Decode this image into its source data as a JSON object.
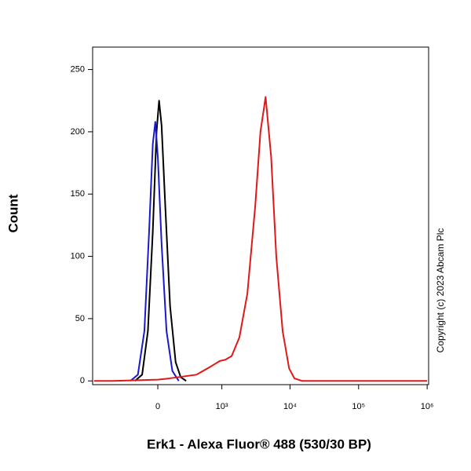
{
  "chart_data": {
    "type": "line",
    "xlabel": "Erk1 - Alexa Fluor® 488 (530/30 BP)",
    "ylabel": "Count",
    "annotation": "Copyright (c) 2023 Abcam Plc",
    "xscale": "biexponential",
    "xlim": [
      -1040,
      1050000
    ],
    "xticks": [
      0,
      {
        "value": 1000,
        "label": "10³"
      },
      {
        "value": 10000,
        "label": "10⁴"
      },
      {
        "value": 100000,
        "label": "10⁵"
      },
      {
        "value": 1000000,
        "label": "10⁶"
      }
    ],
    "ylim": [
      -3,
      268
    ],
    "yticks": [
      0,
      50,
      100,
      150,
      200,
      250
    ],
    "series": [
      {
        "color": "#000000",
        "x": [
          -200,
          -130,
          -80,
          -40,
          -10,
          10,
          30,
          60,
          100,
          150,
          200,
          260
        ],
        "values": [
          0,
          5,
          40,
          120,
          200,
          225,
          205,
          140,
          60,
          15,
          3,
          0
        ]
      },
      {
        "color": "#1a1acc",
        "x": [
          -250,
          -170,
          -110,
          -70,
          -40,
          -20,
          0,
          30,
          70,
          120,
          180
        ],
        "values": [
          0,
          5,
          40,
          120,
          190,
          208,
          180,
          110,
          40,
          8,
          0
        ]
      },
      {
        "color": "#e01818",
        "x": [
          -990,
          -500,
          0,
          90,
          400,
          700,
          930,
          1130,
          1400,
          1820,
          2380,
          3100,
          3700,
          4400,
          5300,
          6300,
          7800,
          9700,
          11600,
          15000,
          1000000
        ],
        "values": [
          0,
          0,
          1,
          2,
          5,
          12,
          16,
          17,
          20,
          35,
          70,
          140,
          200,
          228,
          180,
          100,
          40,
          10,
          2,
          0,
          0
        ]
      }
    ]
  }
}
